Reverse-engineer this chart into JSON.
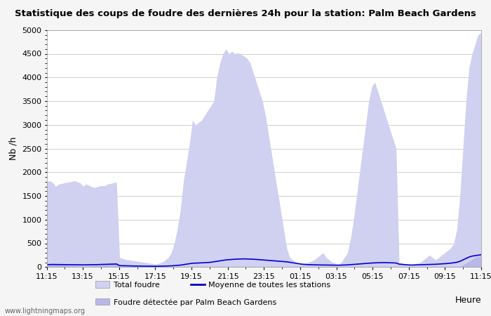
{
  "title": "Statistique des coups de foudre des dernières 24h pour la station: Palm Beach Gardens",
  "xlabel": "Heure",
  "ylabel": "Nb /h",
  "ylim": [
    0,
    5000
  ],
  "yticks": [
    0,
    500,
    1000,
    1500,
    2000,
    2500,
    3000,
    3500,
    4000,
    4500,
    5000
  ],
  "x_labels": [
    "11:15",
    "13:15",
    "15:15",
    "17:15",
    "19:15",
    "21:15",
    "23:15",
    "01:15",
    "03:15",
    "05:15",
    "07:15",
    "09:15",
    "11:15"
  ],
  "bg_color": "#f5f5f5",
  "plot_bg_color": "#ffffff",
  "fill_total_color": "#d0d0f0",
  "fill_station_color": "#b8b8e8",
  "line_color": "#0000cc",
  "watermark": "www.lightningmaps.org",
  "legend_total": "Total foudre",
  "legend_moyenne": "Moyenne de toutes les stations",
  "legend_station": "Foudre détectée par Palm Beach Gardens",
  "num_points": 144,
  "total_foudre": [
    1800,
    1820,
    1780,
    1700,
    1750,
    1760,
    1780,
    1790,
    1800,
    1820,
    1800,
    1780,
    1700,
    1750,
    1720,
    1690,
    1680,
    1700,
    1720,
    1710,
    1750,
    1760,
    1780,
    1790,
    200,
    180,
    160,
    150,
    140,
    130,
    120,
    110,
    100,
    90,
    80,
    70,
    60,
    80,
    100,
    150,
    200,
    300,
    500,
    800,
    1200,
    1800,
    2200,
    2600,
    3100,
    3000,
    3050,
    3100,
    3200,
    3300,
    3400,
    3500,
    4000,
    4300,
    4500,
    4600,
    4500,
    4550,
    4500,
    4520,
    4480,
    4450,
    4400,
    4300,
    4100,
    3900,
    3700,
    3500,
    3200,
    2800,
    2400,
    2000,
    1600,
    1200,
    800,
    400,
    200,
    150,
    100,
    80,
    60,
    80,
    100,
    120,
    150,
    200,
    250,
    300,
    200,
    150,
    100,
    80,
    60,
    100,
    200,
    300,
    600,
    1000,
    1500,
    2000,
    2500,
    3000,
    3500,
    3800,
    3900,
    3700,
    3500,
    3300,
    3100,
    2900,
    2700,
    2500,
    100,
    80,
    60,
    50,
    50,
    60,
    80,
    100,
    150,
    200,
    250,
    200,
    150,
    200,
    250,
    300,
    350,
    400,
    500,
    800,
    1500,
    2500,
    3500,
    4200,
    4500,
    4700,
    4900,
    4950
  ],
  "station_foudre": [
    50,
    55,
    60,
    55,
    50,
    45,
    40,
    35,
    30,
    25,
    20,
    18,
    15,
    18,
    20,
    25,
    30,
    35,
    40,
    45,
    50,
    55,
    60,
    65,
    20,
    18,
    15,
    12,
    10,
    10,
    10,
    10,
    10,
    10,
    10,
    10,
    10,
    10,
    10,
    10,
    10,
    10,
    10,
    10,
    10,
    10,
    10,
    10,
    10,
    10,
    10,
    10,
    10,
    10,
    10,
    10,
    10,
    10,
    10,
    10,
    10,
    10,
    10,
    10,
    10,
    10,
    10,
    10,
    10,
    10,
    10,
    10,
    10,
    10,
    10,
    10,
    10,
    10,
    10,
    10,
    10,
    10,
    10,
    10,
    10,
    10,
    10,
    10,
    10,
    10,
    10,
    10,
    10,
    10,
    10,
    10,
    10,
    10,
    10,
    10,
    10,
    10,
    10,
    10,
    10,
    10,
    10,
    10,
    10,
    10,
    10,
    10,
    10,
    10,
    10,
    10,
    10,
    10,
    10,
    10,
    10,
    10,
    10,
    10,
    10,
    10,
    10,
    10,
    10,
    10,
    10,
    10,
    10,
    10,
    10,
    10,
    20,
    40,
    80,
    120,
    160,
    200,
    220,
    240
  ],
  "moyenne": [
    50,
    52,
    54,
    53,
    51,
    50,
    49,
    48,
    47,
    46,
    46,
    45,
    45,
    46,
    47,
    48,
    50,
    52,
    54,
    56,
    58,
    60,
    62,
    64,
    30,
    28,
    26,
    24,
    22,
    21,
    20,
    19,
    18,
    17,
    17,
    16,
    16,
    17,
    18,
    20,
    22,
    25,
    30,
    35,
    40,
    50,
    60,
    70,
    80,
    82,
    85,
    88,
    90,
    95,
    100,
    110,
    120,
    130,
    140,
    150,
    155,
    160,
    165,
    168,
    170,
    172,
    170,
    168,
    165,
    160,
    155,
    150,
    145,
    140,
    135,
    130,
    125,
    120,
    115,
    110,
    100,
    90,
    80,
    70,
    60,
    55,
    50,
    48,
    46,
    45,
    44,
    43,
    42,
    41,
    40,
    39,
    38,
    40,
    42,
    45,
    50,
    55,
    60,
    65,
    70,
    75,
    80,
    85,
    88,
    90,
    92,
    93,
    92,
    90,
    88,
    85,
    60,
    55,
    50,
    45,
    42,
    44,
    46,
    48,
    50,
    52,
    54,
    56,
    58,
    62,
    66,
    70,
    75,
    82,
    90,
    100,
    120,
    150,
    180,
    210,
    230,
    240,
    250,
    260
  ]
}
